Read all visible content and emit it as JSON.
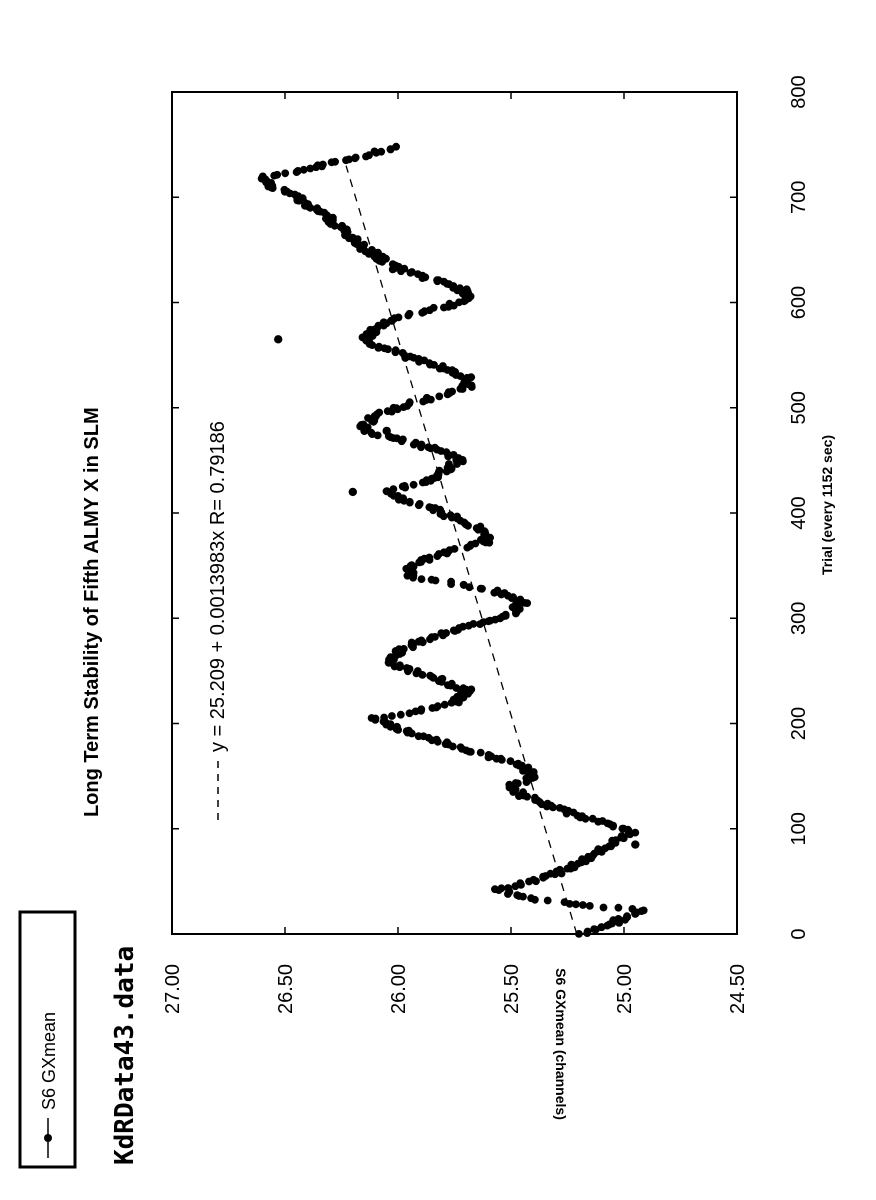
{
  "chart_data": {
    "type": "scatter",
    "orientation": "rotated-90-ccw",
    "title": "Long Term Stability of Fifth ALMY X in SLM",
    "subtitle": "KdRData43.data",
    "xlabel": "Trial (every 1152 sec)",
    "ylabel": "S6 GXmean (channels)",
    "xlim": [
      0,
      800
    ],
    "ylim": [
      24.5,
      27.0
    ],
    "x_ticks": [
      "0",
      "100",
      "200",
      "300",
      "400",
      "500",
      "600",
      "700",
      "800"
    ],
    "y_ticks": [
      "24.50",
      "25.00",
      "25.50",
      "26.00",
      "26.50",
      "27.00"
    ],
    "x_tick_values": [
      0,
      100,
      200,
      300,
      400,
      500,
      600,
      700,
      800
    ],
    "y_tick_values": [
      24.5,
      25.0,
      25.5,
      26.0,
      26.5,
      27.0
    ],
    "grid": false,
    "legend": {
      "placement": "top-left",
      "series_label": "S6 GXmean",
      "fit_label": "y = 25.209 + 0.0013983x  R= 0.79186"
    },
    "fit": {
      "intercept": 25.209,
      "slope": 0.0013983,
      "r": 0.79186
    },
    "series": [
      {
        "name": "S6 GXmean",
        "color": "#000000",
        "anchors": [
          [
            0,
            25.2
          ],
          [
            10,
            25.05
          ],
          [
            22,
            24.93
          ],
          [
            28,
            25.2
          ],
          [
            35,
            25.45
          ],
          [
            42,
            25.55
          ],
          [
            48,
            25.45
          ],
          [
            58,
            25.3
          ],
          [
            68,
            25.2
          ],
          [
            78,
            25.12
          ],
          [
            88,
            25.05
          ],
          [
            96,
            24.95
          ],
          [
            104,
            25.05
          ],
          [
            112,
            25.2
          ],
          [
            122,
            25.33
          ],
          [
            132,
            25.45
          ],
          [
            140,
            25.5
          ],
          [
            150,
            25.4
          ],
          [
            160,
            25.45
          ],
          [
            168,
            25.58
          ],
          [
            175,
            25.7
          ],
          [
            185,
            25.85
          ],
          [
            195,
            26.0
          ],
          [
            205,
            26.12
          ],
          [
            212,
            25.9
          ],
          [
            220,
            25.75
          ],
          [
            232,
            25.7
          ],
          [
            242,
            25.82
          ],
          [
            250,
            25.95
          ],
          [
            260,
            26.05
          ],
          [
            268,
            26.0
          ],
          [
            278,
            25.9
          ],
          [
            288,
            25.75
          ],
          [
            298,
            25.6
          ],
          [
            305,
            25.5
          ],
          [
            315,
            25.45
          ],
          [
            325,
            25.55
          ],
          [
            333,
            25.75
          ],
          [
            340,
            25.95
          ],
          [
            350,
            25.95
          ],
          [
            362,
            25.8
          ],
          [
            372,
            25.62
          ],
          [
            382,
            25.6
          ],
          [
            395,
            25.75
          ],
          [
            405,
            25.85
          ],
          [
            412,
            25.98
          ],
          [
            420,
            26.05
          ],
          [
            432,
            25.85
          ],
          [
            440,
            25.8
          ],
          [
            450,
            25.72
          ],
          [
            462,
            25.85
          ],
          [
            472,
            26.05
          ],
          [
            480,
            26.15
          ],
          [
            490,
            26.12
          ],
          [
            500,
            26.0
          ],
          [
            510,
            25.85
          ],
          [
            518,
            25.7
          ],
          [
            528,
            25.68
          ],
          [
            538,
            25.8
          ],
          [
            548,
            25.95
          ],
          [
            556,
            26.05
          ],
          [
            565,
            26.15
          ],
          [
            575,
            26.1
          ],
          [
            585,
            26.0
          ],
          [
            595,
            25.82
          ],
          [
            602,
            25.68
          ],
          [
            612,
            25.72
          ],
          [
            622,
            25.85
          ],
          [
            632,
            26.0
          ],
          [
            642,
            26.08
          ],
          [
            652,
            26.15
          ],
          [
            660,
            26.2
          ],
          [
            670,
            26.25
          ],
          [
            680,
            26.3
          ],
          [
            690,
            26.38
          ],
          [
            700,
            26.45
          ],
          [
            710,
            26.55
          ],
          [
            718,
            26.6
          ],
          [
            728,
            26.38
          ],
          [
            738,
            26.18
          ],
          [
            748,
            26.0
          ]
        ]
      }
    ],
    "outliers": [
      [
        565,
        26.53
      ],
      [
        478,
        26.05
      ],
      [
        420,
        26.2
      ],
      [
        85,
        24.95
      ]
    ]
  }
}
